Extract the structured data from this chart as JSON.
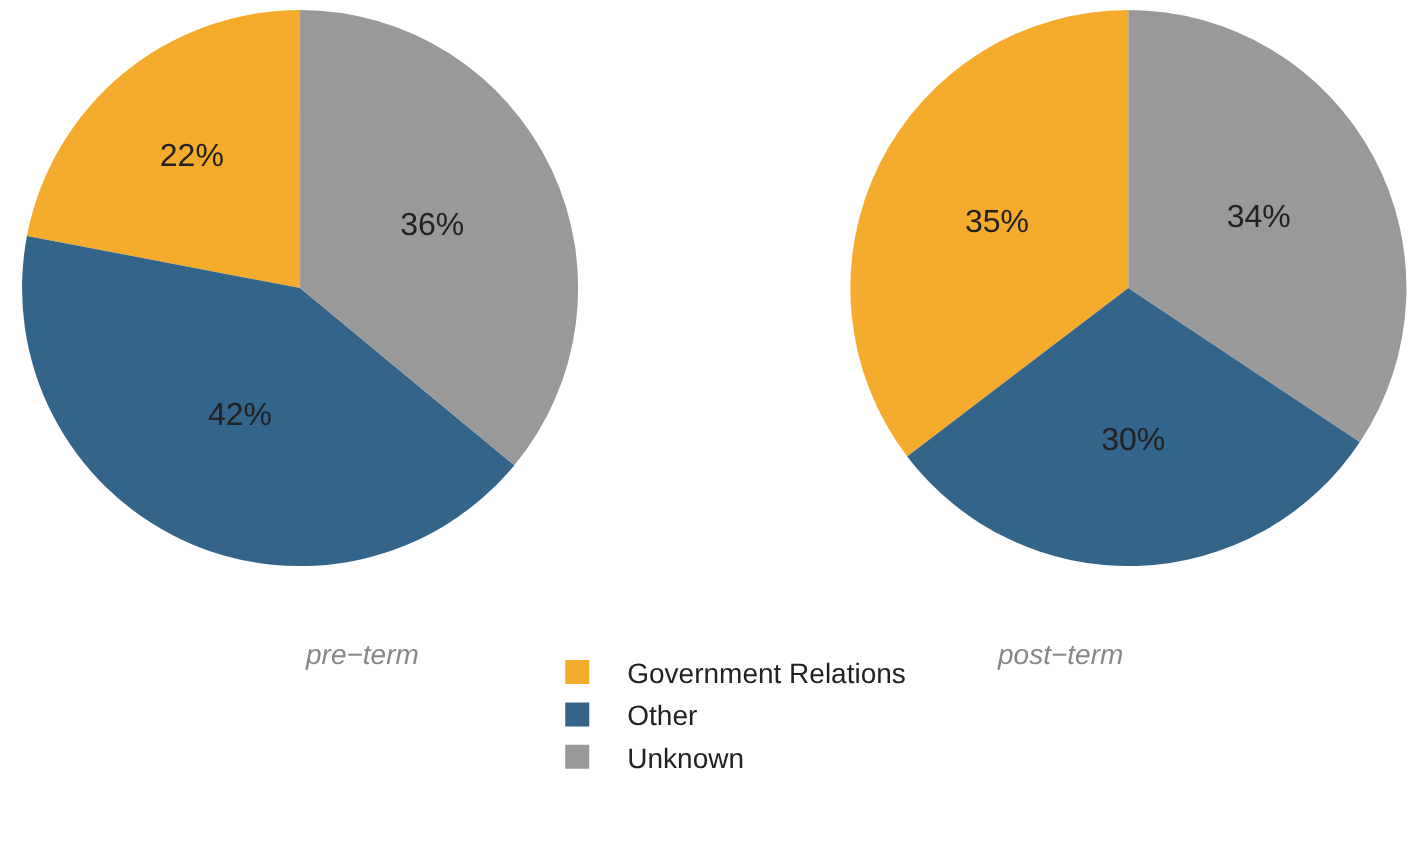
{
  "chart_data": {
    "type": "pie",
    "categories": [
      "Government Relations",
      "Other",
      "Unknown"
    ],
    "colors": [
      "#f5ab2c",
      "#33658a",
      "#999999"
    ],
    "legend": "bottom",
    "series": [
      {
        "name": "pre−term",
        "values": [
          22,
          42,
          36
        ],
        "value_labels": [
          "22%",
          "42%",
          "36%"
        ]
      },
      {
        "name": "post−term",
        "values": [
          35,
          30,
          34
        ],
        "value_labels": [
          "35%",
          "30%",
          "34%"
        ]
      }
    ]
  }
}
